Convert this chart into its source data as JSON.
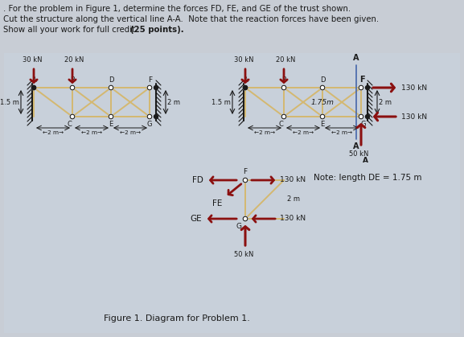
{
  "bg_color": "#c8cdd5",
  "card_color": "#c8d0da",
  "title_lines": [
    ". For the problem in Figure 1, determine the forces FD, FE, and GE of the trust shown.",
    "Cut the structure along the vertical line A-A.  Note that the reaction forces have been given.",
    "Show all your work for full credit. (25 points)."
  ],
  "figure_caption": "Figure 1. Diagram for Problem 1.",
  "truss_color": "#d4b870",
  "arrow_color": "#8b1010",
  "dark": "#1a1a1a",
  "note_text": "Note: length DE = 1.75 m",
  "load_30": "30 kN",
  "load_20": "20 kN",
  "load_130": "130 kN",
  "load_50": "50 kN",
  "dim_15": "1.5 m",
  "dim_2": "2 m",
  "dim_175": "1.75m",
  "lbl_FD": "FD",
  "lbl_FE": "FE",
  "lbl_GE": "GE"
}
